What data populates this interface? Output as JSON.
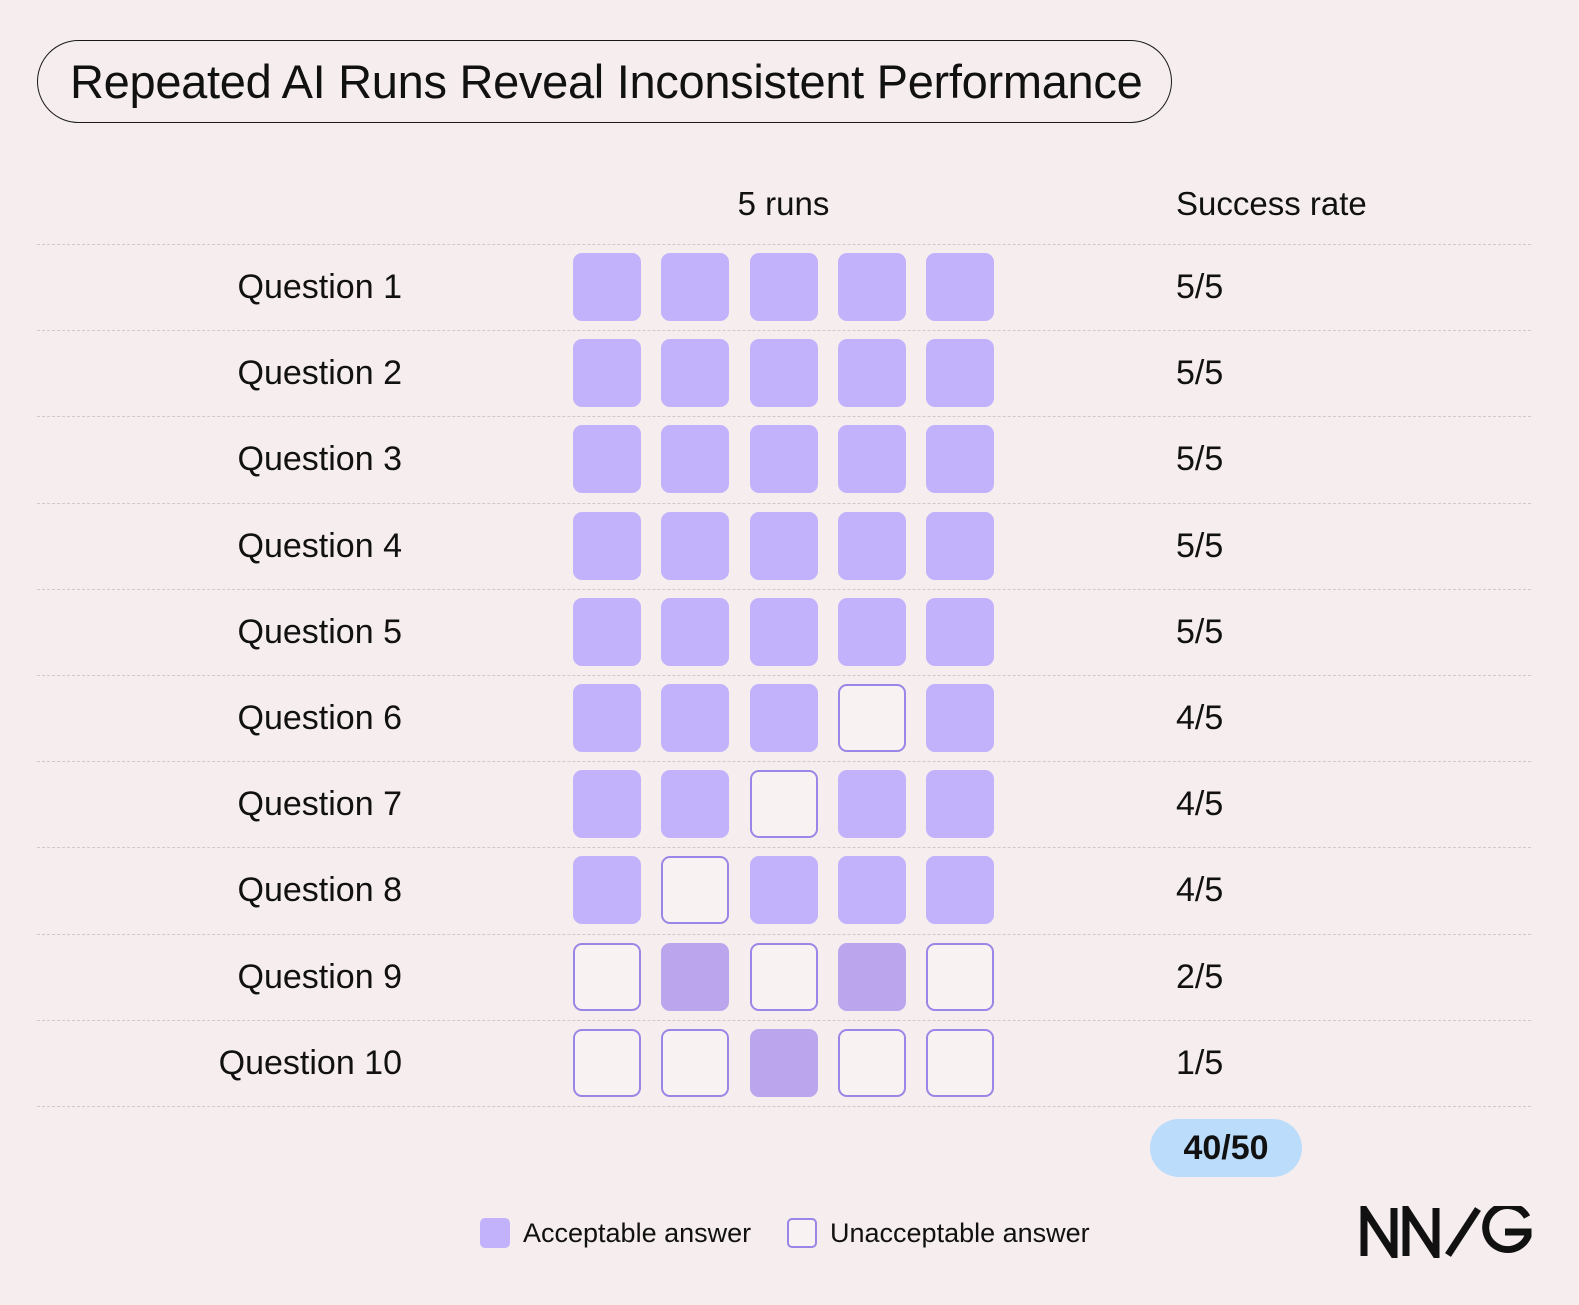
{
  "title": "Repeated AI Runs Reveal Inconsistent Performance",
  "headers": {
    "runs": "5 runs",
    "success_rate": "Success rate"
  },
  "total": "40/50",
  "legend": {
    "acceptable": "Acceptable answer",
    "unacceptable": "Unacceptable answer"
  },
  "logo_text": "NN/G",
  "colors": {
    "acceptable": "#c2b2fc",
    "unacceptable_border": "#9a86e6",
    "total_badge": "#bcdcfb",
    "background": "#f6eeee"
  },
  "chart_data": {
    "type": "table",
    "columns": [
      "Run 1",
      "Run 2",
      "Run 3",
      "Run 4",
      "Run 5"
    ],
    "rows": [
      {
        "label": "Question 1",
        "runs": [
          1,
          1,
          1,
          1,
          1
        ],
        "rate": "5/5"
      },
      {
        "label": "Question 2",
        "runs": [
          1,
          1,
          1,
          1,
          1
        ],
        "rate": "5/5"
      },
      {
        "label": "Question 3",
        "runs": [
          1,
          1,
          1,
          1,
          1
        ],
        "rate": "5/5"
      },
      {
        "label": "Question 4",
        "runs": [
          1,
          1,
          1,
          1,
          1
        ],
        "rate": "5/5"
      },
      {
        "label": "Question 5",
        "runs": [
          1,
          1,
          1,
          1,
          1
        ],
        "rate": "5/5"
      },
      {
        "label": "Question 6",
        "runs": [
          1,
          1,
          1,
          0,
          1
        ],
        "rate": "4/5"
      },
      {
        "label": "Question 7",
        "runs": [
          1,
          1,
          0,
          1,
          1
        ],
        "rate": "4/5"
      },
      {
        "label": "Question 8",
        "runs": [
          1,
          0,
          1,
          1,
          1
        ],
        "rate": "4/5"
      },
      {
        "label": "Question 9",
        "runs": [
          0,
          1,
          0,
          1,
          0
        ],
        "rate": "2/5"
      },
      {
        "label": "Question 10",
        "runs": [
          0,
          0,
          1,
          0,
          0
        ],
        "rate": "1/5"
      }
    ]
  }
}
